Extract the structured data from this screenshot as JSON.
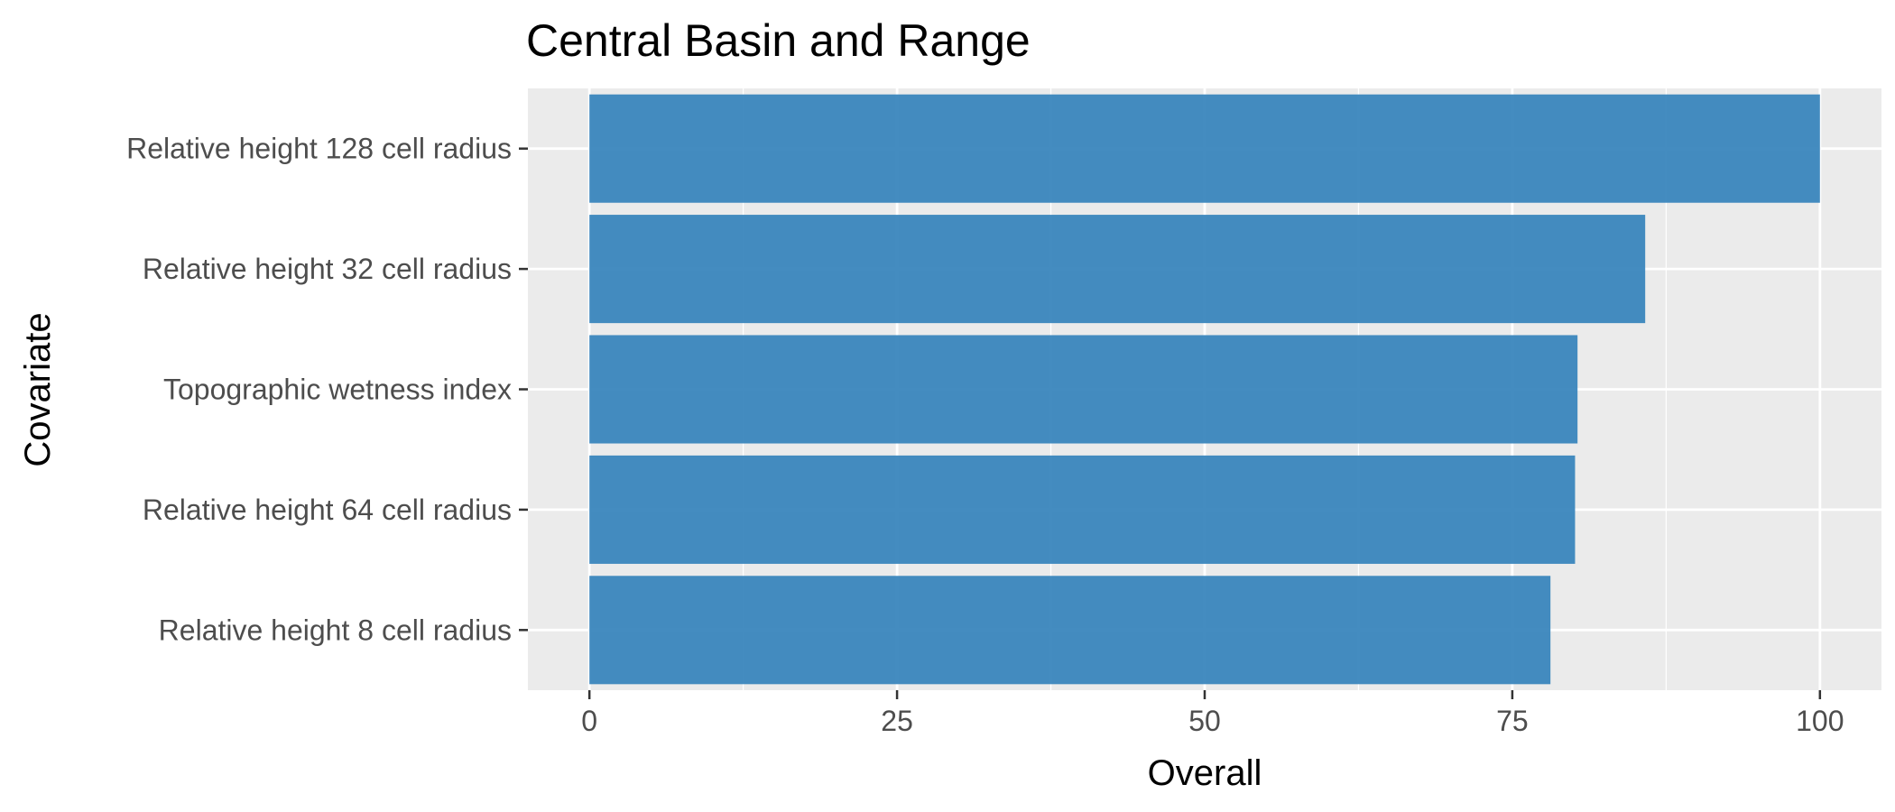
{
  "chart_data": {
    "type": "bar",
    "orientation": "horizontal",
    "title": "Central Basin and Range",
    "xlabel": "Overall",
    "ylabel": "Covariate",
    "categories": [
      "Relative height 128 cell radius",
      "Relative height 32 cell radius",
      "Topographic wetness index",
      "Relative height 64 cell radius",
      "Relative height 8 cell radius"
    ],
    "values": [
      100,
      85.8,
      80.3,
      80.1,
      78.1
    ],
    "xlim": [
      -5,
      105
    ],
    "xticks": [
      0,
      25,
      50,
      75,
      100
    ],
    "grid": true,
    "legend": "none",
    "colors": {
      "bar": "#3a86bd",
      "panel": "#ebebeb",
      "grid": "#ffffff"
    }
  }
}
